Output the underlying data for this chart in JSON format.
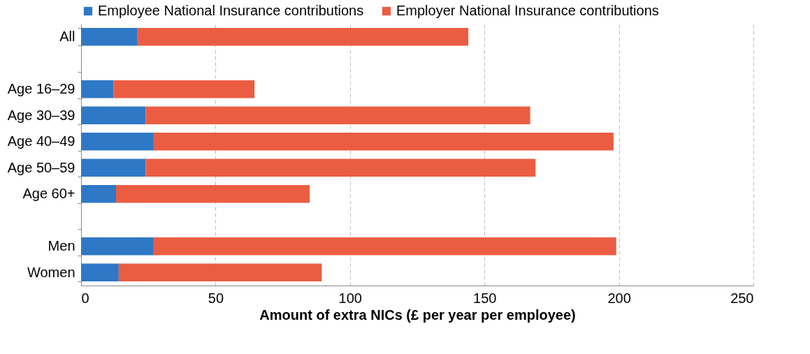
{
  "chart_data": {
    "type": "bar",
    "orientation": "horizontal",
    "stacked": true,
    "categories": [
      "All",
      null,
      "Age 16–29",
      "Age 30–39",
      "Age 40–49",
      "Age 50–59",
      "Age 60+",
      null,
      "Men",
      "Women"
    ],
    "series": [
      {
        "name": "Employee National Insurance contributions",
        "color": "#2f78c6",
        "values": [
          21,
          null,
          12,
          24,
          27,
          24,
          13,
          null,
          27,
          14
        ]
      },
      {
        "name": "Employer National Insurance contributions",
        "color": "#eb5d42",
        "values": [
          123,
          null,
          52.5,
          143,
          171,
          145,
          72,
          null,
          172,
          75.5
        ]
      }
    ],
    "xlabel": "Amount of extra NICs (£ per year per employee)",
    "xlim": [
      0,
      250
    ],
    "xticks": [
      0,
      50,
      100,
      150,
      200,
      250
    ],
    "grid": "x",
    "legend": "top left"
  }
}
